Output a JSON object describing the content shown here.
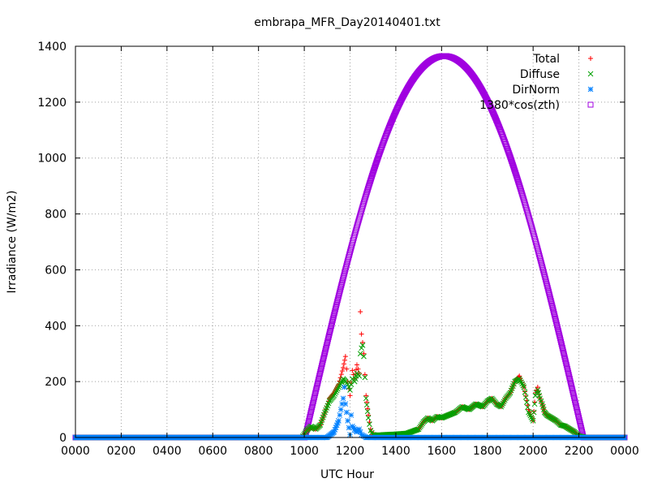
{
  "chart_data": {
    "type": "scatter",
    "title": "embrapa_MFR_Day20140401.txt",
    "xlabel": "UTC Hour",
    "ylabel": "Irradiance (W/m2)",
    "xlim": [
      0,
      24
    ],
    "ylim": [
      0,
      1400
    ],
    "grid": true,
    "legend_position": "top-right",
    "x_ticks": [
      {
        "value": 0,
        "label": "0000"
      },
      {
        "value": 2,
        "label": "0200"
      },
      {
        "value": 4,
        "label": "0400"
      },
      {
        "value": 6,
        "label": "0600"
      },
      {
        "value": 8,
        "label": "0800"
      },
      {
        "value": 10,
        "label": "1000"
      },
      {
        "value": 12,
        "label": "1200"
      },
      {
        "value": 14,
        "label": "1400"
      },
      {
        "value": 16,
        "label": "1600"
      },
      {
        "value": 18,
        "label": "1800"
      },
      {
        "value": 20,
        "label": "2000"
      },
      {
        "value": 22,
        "label": "2200"
      },
      {
        "value": 24,
        "label": "0000"
      }
    ],
    "y_ticks": [
      {
        "value": 0,
        "label": "0"
      },
      {
        "value": 200,
        "label": "200"
      },
      {
        "value": 400,
        "label": "400"
      },
      {
        "value": 600,
        "label": "600"
      },
      {
        "value": 800,
        "label": "800"
      },
      {
        "value": 1000,
        "label": "1000"
      },
      {
        "value": 1200,
        "label": "1200"
      },
      {
        "value": 1400,
        "label": "1400"
      }
    ],
    "series": [
      {
        "name": "Total",
        "marker": "plus",
        "color": "#ff0000",
        "x": [
          0,
          2,
          4,
          6,
          8,
          9.9,
          10.1,
          10.3,
          10.5,
          10.7,
          10.9,
          11.1,
          11.3,
          11.5,
          11.7,
          11.8,
          11.9,
          12.0,
          12.1,
          12.2,
          12.3,
          12.4,
          12.45,
          12.5,
          12.55,
          12.6,
          12.7,
          12.8,
          12.9,
          13.0,
          13.2,
          13.5,
          14.0,
          14.5,
          15.0,
          15.2,
          15.4,
          15.6,
          15.8,
          16.0,
          16.3,
          16.6,
          16.9,
          17.2,
          17.5,
          17.8,
          18.0,
          18.2,
          18.4,
          18.6,
          18.8,
          19.0,
          19.2,
          19.4,
          19.6,
          19.8,
          20.0,
          20.1,
          20.2,
          20.3,
          20.4,
          20.5,
          20.6,
          20.8,
          21.0,
          21.2,
          21.4,
          21.6,
          21.8,
          22.0,
          22.3,
          23,
          24
        ],
        "y": [
          0,
          0,
          0,
          0,
          0,
          0,
          25,
          35,
          30,
          45,
          90,
          140,
          160,
          190,
          250,
          290,
          200,
          150,
          240,
          210,
          260,
          230,
          450,
          370,
          340,
          300,
          150,
          80,
          30,
          10,
          8,
          10,
          12,
          15,
          30,
          55,
          70,
          60,
          75,
          70,
          80,
          90,
          110,
          100,
          120,
          110,
          130,
          140,
          120,
          110,
          140,
          160,
          200,
          220,
          180,
          100,
          60,
          160,
          180,
          140,
          120,
          90,
          80,
          70,
          60,
          45,
          40,
          30,
          20,
          5,
          0,
          0,
          0
        ]
      },
      {
        "name": "Diffuse",
        "marker": "cross",
        "color": "#00a000",
        "x": [
          0,
          2,
          4,
          6,
          8,
          9.9,
          10.1,
          10.3,
          10.5,
          10.7,
          10.9,
          11.1,
          11.3,
          11.5,
          11.7,
          11.8,
          11.9,
          12.0,
          12.1,
          12.2,
          12.3,
          12.4,
          12.45,
          12.5,
          12.55,
          12.6,
          12.7,
          12.8,
          12.9,
          13.0,
          13.2,
          13.5,
          14.0,
          14.5,
          15.0,
          15.2,
          15.4,
          15.6,
          15.8,
          16.0,
          16.3,
          16.6,
          16.9,
          17.2,
          17.5,
          17.8,
          18.0,
          18.2,
          18.4,
          18.6,
          18.8,
          19.0,
          19.2,
          19.4,
          19.6,
          19.8,
          20.0,
          20.1,
          20.2,
          20.3,
          20.4,
          20.5,
          20.6,
          20.8,
          21.0,
          21.2,
          21.4,
          21.6,
          21.8,
          22.0,
          22.3,
          23,
          24
        ],
        "y": [
          0,
          0,
          0,
          0,
          0,
          0,
          25,
          40,
          30,
          45,
          90,
          130,
          150,
          180,
          210,
          200,
          190,
          170,
          210,
          200,
          230,
          220,
          300,
          320,
          330,
          290,
          140,
          70,
          25,
          10,
          8,
          10,
          12,
          15,
          30,
          55,
          70,
          60,
          75,
          70,
          80,
          90,
          110,
          100,
          120,
          110,
          130,
          140,
          120,
          110,
          140,
          160,
          200,
          210,
          180,
          90,
          60,
          150,
          170,
          140,
          120,
          90,
          80,
          70,
          60,
          45,
          40,
          30,
          20,
          5,
          0,
          0,
          0
        ]
      },
      {
        "name": "DirNorm",
        "marker": "star",
        "color": "#0080ff",
        "x": [
          0,
          2,
          4,
          6,
          8,
          10,
          11,
          11.3,
          11.5,
          11.6,
          11.7,
          11.75,
          11.8,
          11.85,
          11.9,
          12.0,
          12.05,
          12.1,
          12.2,
          12.3,
          12.4,
          12.5,
          12.6,
          12.7,
          13,
          14,
          15,
          16,
          17,
          18,
          19,
          20,
          21,
          22,
          23,
          24
        ],
        "y": [
          0,
          0,
          0,
          0,
          0,
          0,
          0,
          20,
          60,
          100,
          140,
          180,
          120,
          90,
          60,
          10,
          80,
          40,
          30,
          20,
          30,
          10,
          5,
          0,
          0,
          0,
          0,
          0,
          0,
          0,
          0,
          0,
          0,
          0,
          0,
          0
        ]
      },
      {
        "name": "1380*cos(zth)",
        "marker": "square",
        "color": "#a000e0",
        "x_start": 0,
        "x_end": 24,
        "rise": 10.03,
        "set": 22.2,
        "peak": 1365
      }
    ]
  }
}
